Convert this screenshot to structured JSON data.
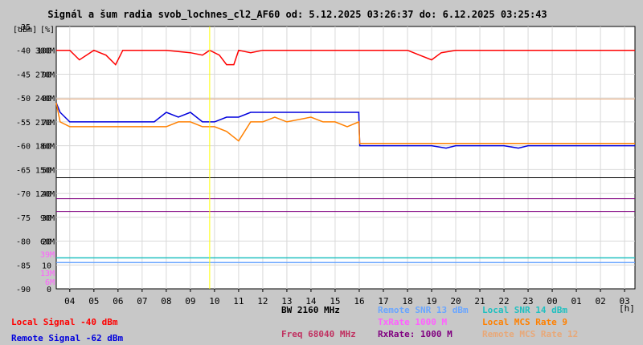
{
  "chart_data": {
    "type": "line",
    "title": "Signál a šum radia svob_lochnes_cl2_AF60 od: 5.12.2025 03:26:37 do: 6.12.2025 03:25:43",
    "y_unit_labels": [
      "[dBm]",
      "[%]"
    ],
    "x_unit_label": "[h]",
    "x_ticks": [
      "04",
      "05",
      "06",
      "07",
      "08",
      "09",
      "10",
      "11",
      "12",
      "13",
      "14",
      "15",
      "16",
      "17",
      "18",
      "19",
      "20",
      "21",
      "22",
      "23",
      "00",
      "01",
      "02",
      "03"
    ],
    "y_ticks_dbm": [
      "-35",
      "-40",
      "-45",
      "-50",
      "-55",
      "-60",
      "-65",
      "-70",
      "-75",
      "-80",
      "-85",
      "-90"
    ],
    "y_ticks_pct": [
      "",
      "100",
      "90",
      "80",
      "70",
      "60",
      "50",
      "40",
      "30",
      "20",
      "10",
      "0"
    ],
    "y_ticks_rate": [
      "",
      "300M",
      "270M",
      "240M",
      "210M",
      "180M",
      "150M",
      "120M",
      "90M",
      "60M",
      "39M",
      "13M",
      "6M"
    ],
    "ylim_dbm": [
      -90,
      -35
    ],
    "xlim_hours": [
      3.44,
      27.43
    ],
    "grid": true,
    "cursor_hour": 9.8,
    "series": [
      {
        "name": "Local Signal -40 dBm",
        "color": "#ff0000",
        "x": [
          3.44,
          4.0,
          4.4,
          5.0,
          5.5,
          5.9,
          6.2,
          6.6,
          7.0,
          8.0,
          9.0,
          9.5,
          9.8,
          10.2,
          10.5,
          10.8,
          11.0,
          11.5,
          12.0,
          13.0,
          14.0,
          15.0,
          16.0,
          17.0,
          18.0,
          18.5,
          19.0,
          19.4,
          20.0,
          21.0,
          22.0,
          23.0,
          24.0,
          25.0,
          26.0,
          27.43
        ],
        "y": [
          -40,
          -40,
          -42,
          -40,
          -41,
          -43,
          -40,
          -40,
          -40,
          -40,
          -40.5,
          -41,
          -40,
          -41,
          -43,
          -43,
          -40,
          -40.5,
          -40,
          -40,
          -40,
          -40,
          -40,
          -40,
          -40,
          -41,
          -42,
          -40.5,
          -40,
          -40,
          -40,
          -40,
          -40,
          -40,
          -40,
          -40
        ]
      },
      {
        "name": "Remote Signal -62 dBm",
        "color": "#0000dd",
        "x": [
          3.44,
          3.6,
          4.0,
          4.5,
          5.0,
          5.5,
          6.0,
          6.5,
          7.0,
          7.5,
          8.0,
          8.5,
          9.0,
          9.5,
          10.0,
          10.5,
          11.0,
          11.5,
          12.0,
          12.5,
          13.0,
          13.5,
          14.0,
          14.5,
          15.0,
          15.5,
          15.98,
          16.02,
          17.0,
          18.0,
          19.0,
          19.6,
          20.0,
          21.0,
          22.0,
          22.6,
          23.0,
          24.0,
          25.0,
          26.0,
          27.43
        ],
        "y": [
          -51,
          -53,
          -55,
          -55,
          -55,
          -55,
          -55,
          -55,
          -55,
          -55,
          -53,
          -54,
          -53,
          -55,
          -55,
          -54,
          -54,
          -53,
          -53,
          -53,
          -53,
          -53,
          -53,
          -53,
          -53,
          -53,
          -53,
          -60,
          -60,
          -60,
          -60,
          -60.5,
          -60,
          -60,
          -60,
          -60.5,
          -60,
          -60,
          -60,
          -60,
          -60
        ]
      },
      {
        "name": "Local MCS Rate 9",
        "color": "#ff8000",
        "x": [
          3.44,
          3.6,
          4.0,
          4.5,
          5.0,
          6.0,
          6.5,
          7.0,
          8.0,
          8.5,
          9.0,
          9.5,
          10.0,
          10.5,
          11.0,
          11.5,
          12.0,
          12.5,
          13.0,
          14.0,
          14.5,
          15.0,
          15.5,
          15.98,
          16.02,
          17.0,
          18.0,
          19.0,
          20.0,
          21.0,
          22.0,
          23.0,
          24.0,
          25.0,
          26.0,
          27.43
        ],
        "y": [
          -51,
          -55,
          -56,
          -56,
          -56,
          -56,
          -56,
          -56,
          -56,
          -55,
          -55,
          -56,
          -56,
          -57,
          -59,
          -55,
          -55,
          -54,
          -55,
          -54,
          -55,
          -55,
          -56,
          -55,
          -59.5,
          -59.5,
          -59.5,
          -59.5,
          -59.5,
          -59.5,
          -59.5,
          -59.5,
          -59.5,
          -59.5,
          -59.5,
          -59.5
        ]
      },
      {
        "name": "Remote SNR 13 dBm",
        "color": "#6aa6ff",
        "x": [
          3.44,
          27.43
        ],
        "y": [
          -84.5,
          -84.5
        ]
      },
      {
        "name": "Local SNR 14 dBm",
        "color": "#20c0c0",
        "x": [
          3.44,
          27.43
        ],
        "y": [
          -83.5,
          -83.5
        ]
      }
    ],
    "ref_lines": [
      {
        "y": -66.7,
        "color": "#000000"
      },
      {
        "y": -71.1,
        "color": "#800080"
      },
      {
        "y": -73.8,
        "color": "#800080"
      },
      {
        "y": -50.2,
        "color": "#e8a878"
      }
    ]
  },
  "legend": {
    "local_signal": "Local Signal -40 dBm",
    "remote_signal": "Remote Signal -62 dBm",
    "bw": "BW 2160 MHz",
    "freq": "Freq 68040 MHz",
    "remote_snr": "Remote SNR 13 dBm",
    "txrate": "TxRate 1000 M",
    "rxrate": "RxRate: 1000 M",
    "local_snr": "Local SNR 14 dBm",
    "local_mcs": "Local MCS Rate 9",
    "remote_mcs": "Remote MCS Rate 12"
  },
  "colors": {
    "local_signal": "#ff0000",
    "remote_signal": "#0000dd",
    "bw": "#000000",
    "freq": "#c03060",
    "remote_snr": "#6aa6ff",
    "txrate": "#ff60ff",
    "rxrate": "#800080",
    "local_snr": "#20c0c0",
    "local_mcs": "#ff8000",
    "remote_mcs": "#e8a878"
  }
}
